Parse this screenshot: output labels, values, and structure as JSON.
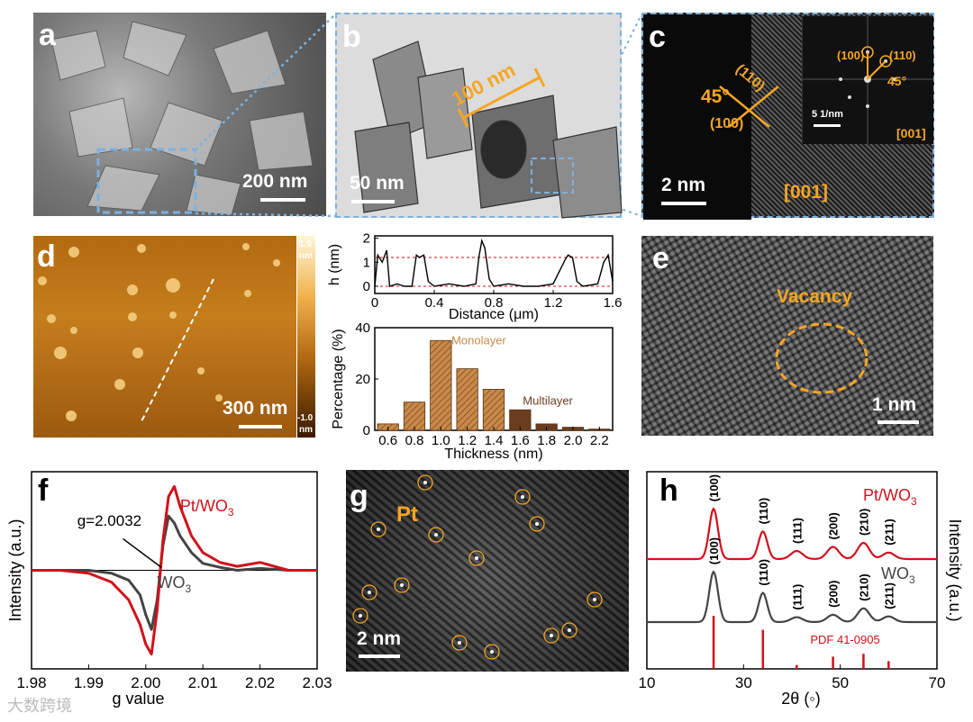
{
  "panels": {
    "a": {
      "label": "a",
      "scale": "200 nm"
    },
    "b": {
      "label": "b",
      "scale": "50 nm",
      "measure": "100 nm"
    },
    "c": {
      "label": "c",
      "scale": "2 nm",
      "zone": "[001]",
      "angle": "45°",
      "plane1": "(110)",
      "plane2": "(100)",
      "fft": {
        "p1": "(100)",
        "p2": "(110)",
        "angle": "45°",
        "scale": "5 1/nm",
        "zone": "[001]"
      }
    },
    "d": {
      "label": "d",
      "scale": "300 nm",
      "cbar_top": "1.9",
      "cbar_top_unit": "nm",
      "cbar_bottom": "-1.0",
      "cbar_bottom_unit": "nm"
    },
    "e": {
      "label": "e",
      "scale": "1 nm",
      "annotation": "Vacancy"
    },
    "f": {
      "label": "f"
    },
    "g": {
      "label": "g",
      "scale": "2 nm",
      "annotation": "Pt"
    },
    "h": {
      "label": "h"
    }
  },
  "chart_data": [
    {
      "id": "d-profile",
      "type": "line",
      "xlabel": "Distance (μm)",
      "ylabel": "h (nm)",
      "xlim": [
        0,
        1.6
      ],
      "ylim": [
        -0.3,
        2.1
      ],
      "xticks": [
        "0",
        "0.4",
        "0.8",
        "1.2",
        "1.6"
      ],
      "yticks": [
        "0",
        "1",
        "2"
      ],
      "reference_lines": [
        0.0,
        1.2
      ],
      "x": [
        0,
        0.02,
        0.05,
        0.08,
        0.1,
        0.15,
        0.2,
        0.25,
        0.28,
        0.3,
        0.33,
        0.36,
        0.4,
        0.5,
        0.6,
        0.68,
        0.7,
        0.72,
        0.74,
        0.77,
        0.8,
        0.9,
        1.0,
        1.1,
        1.2,
        1.28,
        1.3,
        1.33,
        1.36,
        1.4,
        1.5,
        1.54,
        1.57,
        1.6
      ],
      "y": [
        0.0,
        1.3,
        1.0,
        1.5,
        0.0,
        0.1,
        0.0,
        0.0,
        1.3,
        1.2,
        1.3,
        0.2,
        0.0,
        0.1,
        0.0,
        0.1,
        1.2,
        1.9,
        1.6,
        0.3,
        0.0,
        0.1,
        0.0,
        0.0,
        0.1,
        1.1,
        1.3,
        1.2,
        0.2,
        0.0,
        0.1,
        1.0,
        1.3,
        0.2
      ]
    },
    {
      "id": "d-histogram",
      "type": "bar",
      "xlabel": "Thickness (nm)",
      "ylabel": "Percentage (%)",
      "xlim": [
        0.5,
        2.3
      ],
      "ylim": [
        0,
        40
      ],
      "xticks": [
        "0.6",
        "0.8",
        "1.0",
        "1.2",
        "1.4",
        "1.6",
        "1.8",
        "2.0",
        "2.2"
      ],
      "yticks": [
        "0",
        "20",
        "40"
      ],
      "categories": [
        0.6,
        0.8,
        1.0,
        1.2,
        1.4,
        1.6,
        1.8,
        2.0,
        2.2
      ],
      "values": [
        2.5,
        11,
        35,
        24,
        16,
        8,
        2.5,
        1.2,
        0.5
      ],
      "monolayer_count": 5,
      "labels": {
        "monolayer": "Monolayer",
        "multilayer": "Multilayer"
      },
      "colors": {
        "monolayer": "#c8894a",
        "multilayer": "#6b3d1f"
      }
    },
    {
      "id": "f-epr",
      "type": "line",
      "xlabel": "g value",
      "ylabel": "Intensity (a.u.)",
      "xlim": [
        1.98,
        2.03
      ],
      "ylim": [
        -1.0,
        1.0
      ],
      "xticks": [
        "1.98",
        "1.99",
        "2.00",
        "2.01",
        "2.02",
        "2.03"
      ],
      "annotation": "g=2.0032",
      "annotation_g": 2.0032,
      "series": [
        {
          "name": "Pt/WO3",
          "name_main": "Pt/WO",
          "name_sub": "3",
          "color": "#d0111b",
          "x": [
            1.98,
            1.985,
            1.99,
            1.994,
            1.997,
            1.999,
            2.0,
            2.001,
            2.002,
            2.003,
            2.004,
            2.005,
            2.006,
            2.008,
            2.01,
            2.013,
            2.016,
            2.02,
            2.025,
            2.03
          ],
          "y": [
            0.0,
            0.0,
            -0.03,
            -0.12,
            -0.3,
            -0.55,
            -0.75,
            -0.85,
            -0.4,
            0.3,
            0.75,
            0.85,
            0.65,
            0.35,
            0.18,
            0.08,
            0.04,
            0.08,
            0.0,
            0.0
          ]
        },
        {
          "name": "WO3",
          "name_main": "WO",
          "name_sub": "3",
          "color": "#444444",
          "x": [
            1.98,
            1.985,
            1.99,
            1.994,
            1.997,
            1.999,
            2.0,
            2.001,
            2.002,
            2.003,
            2.004,
            2.005,
            2.006,
            2.008,
            2.01,
            2.013,
            2.016,
            2.02,
            2.025,
            2.03
          ],
          "y": [
            0.0,
            0.0,
            0.0,
            -0.03,
            -0.1,
            -0.25,
            -0.45,
            -0.6,
            -0.3,
            0.25,
            0.55,
            0.48,
            0.35,
            0.18,
            0.07,
            0.03,
            0.0,
            0.02,
            0.0,
            0.0
          ]
        }
      ]
    },
    {
      "id": "h-xrd",
      "type": "line",
      "xlabel": "2θ (◦)",
      "ylabel": "Intensity (a.u.)",
      "xlim": [
        10,
        70
      ],
      "xticks": [
        "10",
        "30",
        "50",
        "70"
      ],
      "peaks": [
        {
          "hkl": "(100)",
          "two_theta": 23.8,
          "h_pt": 0.62,
          "h_wo3": 0.62,
          "ref": 0.95
        },
        {
          "hkl": "(110)",
          "two_theta": 34.0,
          "h_pt": 0.34,
          "h_wo3": 0.36,
          "ref": 0.7
        },
        {
          "hkl": "(111)",
          "two_theta": 41.0,
          "h_pt": 0.1,
          "h_wo3": 0.06,
          "ref": 0.07
        },
        {
          "hkl": "(200)",
          "two_theta": 48.5,
          "h_pt": 0.15,
          "h_wo3": 0.09,
          "ref": 0.22
        },
        {
          "hkl": "(210)",
          "two_theta": 54.8,
          "h_pt": 0.2,
          "h_wo3": 0.17,
          "ref": 0.27
        },
        {
          "hkl": "(211)",
          "two_theta": 60.0,
          "h_pt": 0.08,
          "h_wo3": 0.07,
          "ref": 0.14
        }
      ],
      "series_labels": [
        {
          "name": "Pt/WO3",
          "main": "Pt/WO",
          "sub": "3",
          "color": "#d0111b"
        },
        {
          "name": "WO3",
          "main": "WO",
          "sub": "3",
          "color": "#444444"
        }
      ],
      "reference": "PDF 41-0905",
      "reference_color": "#d0111b"
    }
  ],
  "watermark": "大数跨境"
}
